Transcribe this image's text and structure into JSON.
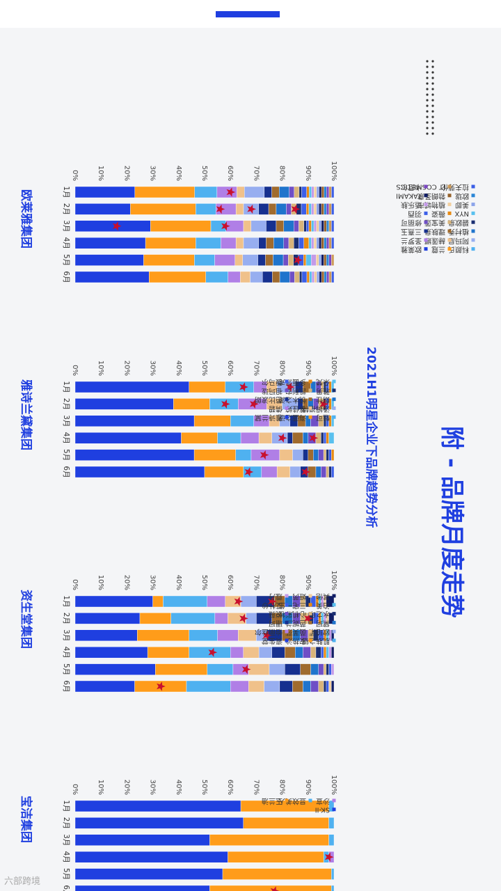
{
  "page": {
    "title": "附 - 品牌月度走势",
    "subtitle": "2021H1明星企业下品牌趋势分析",
    "watermark": "化妆品财经在线",
    "footer": "六部跨境",
    "colors": {
      "accent": "#1f3fe0",
      "star": "#c8102e"
    }
  },
  "chart_data": [
    {
      "type": "bar",
      "stacked": "percent",
      "title": "欧莱雅集团",
      "categories": [
        "1月",
        "2月",
        "3月",
        "4月",
        "5月",
        "6月"
      ],
      "yticks": [
        "0%",
        "10%",
        "20%",
        "30%",
        "40%",
        "50%",
        "60%",
        "70%",
        "80%",
        "90%",
        "100%"
      ],
      "series": [
        {
          "name": "欧莱雅",
          "color": "#1f3fe0",
          "values": [
            24,
            22,
            30,
            28,
            27,
            30
          ]
        },
        {
          "name": "兰蔻",
          "color": "#ff9c1a",
          "values": [
            24,
            26,
            24,
            20,
            20,
            23
          ]
        },
        {
          "name": "科颜氏",
          "color": "#4fb1f0",
          "values": [
            9,
            8,
            6,
            10,
            8,
            9
          ]
        },
        {
          "name": "圣罗兰",
          "color": "#b07fe6",
          "values": [
            8,
            8,
            7,
            6,
            8,
            5
          ]
        },
        {
          "name": "赫莲娜",
          "color": "#f0c18a",
          "values": [
            3,
            3,
            3,
            3,
            3,
            4
          ]
        },
        {
          "name": "阿玛尼",
          "color": "#97aef0",
          "values": [
            8,
            6,
            6,
            6,
            6,
            5
          ]
        },
        {
          "name": "三熹玉",
          "color": "#16308f",
          "values": [
            3,
            4,
            4,
            3,
            3,
            4
          ]
        },
        {
          "name": "理肤泉",
          "color": "#a06b2e",
          "values": [
            3,
            3,
            3,
            3,
            3,
            3
          ]
        },
        {
          "name": "植村秀",
          "color": "#1f74cc",
          "values": [
            4,
            4,
            4,
            4,
            4,
            4
          ]
        },
        {
          "name": "修丽可",
          "color": "#6f4fc6",
          "values": [
            2,
            2,
            2,
            2,
            2,
            2
          ]
        },
        {
          "name": "美宝莲",
          "color": "#d8b47a",
          "values": [
            2,
            2,
            2,
            2,
            2,
            2
          ]
        },
        {
          "name": "碧欧泉",
          "color": "#1a2e72",
          "values": [
            1,
            2,
            1,
            2,
            2,
            1
          ]
        },
        {
          "name": "羽西",
          "color": "#3c5fe8",
          "values": [
            2,
            2,
            1,
            2,
            2,
            2
          ]
        },
        {
          "name": "薇姿",
          "color": "#e88a12",
          "values": [
            1,
            1,
            1,
            2,
            1,
            1
          ]
        },
        {
          "name": "NYX",
          "color": "#59c0ee",
          "values": [
            1,
            1,
            1,
            1,
            2,
            1
          ]
        },
        {
          "name": "适乐肤",
          "color": "#c49ae8",
          "values": [
            1,
            1,
            1,
            1,
            2,
            1
          ]
        },
        {
          "name": "植物城市",
          "color": "#f2cf9f",
          "values": [
            1,
            1,
            1,
            1,
            1,
            1
          ]
        },
        {
          "name": "美即",
          "color": "#8ca4ea",
          "values": [
            1,
            1,
            1,
            1,
            1,
            1
          ]
        },
        {
          "name": "TAKAMI",
          "color": "#101d66",
          "values": [
            1,
            1,
            1,
            1,
            1,
            1
          ]
        },
        {
          "name": "勃朗圣泉",
          "color": "#95612a",
          "values": [
            1,
            1,
            1,
            1,
            1,
            1
          ]
        },
        {
          "name": "欧珑",
          "color": "#2a86d6",
          "values": [
            1,
            1,
            1,
            1,
            1,
            1
          ]
        },
        {
          "name": "卡尼尔",
          "color": "#7a46c2",
          "values": [
            1,
            1,
            0,
            1,
            1,
            1
          ]
        },
        {
          "name": "IT COSMETICS",
          "color": "#cc9a5a",
          "values": [
            1,
            1,
            1,
            1,
            1,
            1
          ]
        },
        {
          "name": "拉夫劳伦",
          "color": "#3b5ee6",
          "values": [
            1,
            1,
            1,
            1,
            0,
            1
          ]
        }
      ],
      "annotations": [
        {
          "category": "1月",
          "at": 60
        },
        {
          "category": "2月",
          "at": 56
        },
        {
          "category": "2月",
          "at": 68
        },
        {
          "category": "2月",
          "at": 85
        },
        {
          "category": "3月",
          "at": 16
        },
        {
          "category": "3月",
          "at": 58
        },
        {
          "category": "5月",
          "at": 86
        }
      ]
    },
    {
      "type": "bar",
      "stacked": "percent",
      "title": "雅诗兰黛集团",
      "categories": [
        "1月",
        "2月",
        "3月",
        "4月",
        "5月",
        "6月"
      ],
      "yticks": [
        "0%",
        "10%",
        "20%",
        "30%",
        "40%",
        "50%",
        "60%",
        "70%",
        "80%",
        "90%",
        "100%"
      ],
      "series": [
        {
          "name": "雅诗兰黛",
          "color": "#1f3fe0",
          "values": [
            44,
            38,
            46,
            41,
            46,
            50
          ]
        },
        {
          "name": "海蓝之谜",
          "color": "#ff9c1a",
          "values": [
            14,
            14,
            14,
            14,
            16,
            15
          ]
        },
        {
          "name": "魅可",
          "color": "#4fb1f0",
          "values": [
            11,
            11,
            9,
            9,
            6,
            7
          ]
        },
        {
          "name": "倩碧",
          "color": "#b07fe6",
          "values": [
            5,
            11,
            6,
            7,
            11,
            6
          ]
        },
        {
          "name": "蒂佳婷",
          "color": "#f0c18a",
          "values": [
            4,
            6,
            4,
            5,
            5,
            5
          ]
        },
        {
          "name": "汤姆福特",
          "color": "#97aef0",
          "values": [
            7,
            6,
            4,
            6,
            4,
            4
          ]
        },
        {
          "name": "芭比波朗",
          "color": "#16308f",
          "values": [
            3,
            2,
            3,
            2,
            2,
            3
          ]
        },
        {
          "name": "悦木之源",
          "color": "#a06b2e",
          "values": [
            3,
            2,
            3,
            4,
            2,
            3
          ]
        },
        {
          "name": "朗仕",
          "color": "#1f74cc",
          "values": [
            2,
            2,
            2,
            2,
            2,
            2
          ]
        },
        {
          "name": "祖玛珑",
          "color": "#6f4fc6",
          "values": [
            2,
            2,
            3,
            3,
            2,
            2
          ]
        },
        {
          "name": "凯利安",
          "color": "#d8b47a",
          "values": [
            1,
            2,
            2,
            2,
            1,
            1
          ]
        },
        {
          "name": "雅男",
          "color": "#1a2e72",
          "values": [
            1,
            1,
            1,
            1,
            1,
            1
          ]
        },
        {
          "name": "馥马尔",
          "color": "#3c5fe8",
          "values": [
            1,
            1,
            1,
            1,
            1,
            1
          ]
        },
        {
          "name": "多面派对",
          "color": "#e88a12",
          "values": [
            1,
            1,
            1,
            1,
            1,
            0
          ]
        },
        {
          "name": "朵梵",
          "color": "#59c0ee",
          "values": [
            1,
            1,
            1,
            2,
            0,
            0
          ]
        }
      ],
      "annotations": [
        {
          "category": "1月",
          "at": 65
        },
        {
          "category": "1月",
          "at": 83
        },
        {
          "category": "2月",
          "at": 58
        },
        {
          "category": "2月",
          "at": 69
        },
        {
          "category": "2月",
          "at": 96
        },
        {
          "category": "4月",
          "at": 80
        },
        {
          "category": "4月",
          "at": 92
        },
        {
          "category": "5月",
          "at": 73
        },
        {
          "category": "6月",
          "at": 67
        },
        {
          "category": "6月",
          "at": 89
        }
      ]
    },
    {
      "type": "bar",
      "stacked": "percent",
      "title": "资生堂集团",
      "categories": [
        "1月",
        "2月",
        "3月",
        "4月",
        "5月",
        "6月"
      ],
      "yticks": [
        "0%",
        "10%",
        "20%",
        "30%",
        "40%",
        "50%",
        "60%",
        "70%",
        "80%",
        "90%",
        "100%"
      ],
      "series": [
        {
          "name": "资生堂",
          "color": "#1f3fe0",
          "values": [
            30,
            25,
            24,
            28,
            31,
            23
          ]
        },
        {
          "name": "安热沙",
          "color": "#ff9c1a",
          "values": [
            4,
            12,
            20,
            16,
            20,
            20
          ]
        },
        {
          "name": "肌肤之钥",
          "color": "#4fb1f0",
          "values": [
            17,
            17,
            11,
            16,
            10,
            17
          ]
        },
        {
          "name": "怡丽丝尔",
          "color": "#b07fe6",
          "values": [
            7,
            5,
            8,
            5,
            6,
            7
          ]
        },
        {
          "name": "茵芙莎",
          "color": "#f0c18a",
          "values": [
            6,
            7,
            7,
            6,
            8,
            6
          ]
        },
        {
          "name": "欧珀莱",
          "color": "#97aef0",
          "values": [
            6,
            4,
            4,
            5,
            6,
            6
          ]
        },
        {
          "name": "珊珂",
          "color": "#16308f",
          "values": [
            7,
            6,
            6,
            5,
            6,
            5
          ]
        },
        {
          "name": "芭妮兰",
          "color": "#a06b2e",
          "values": [
            4,
            4,
            4,
            4,
            4,
            4
          ]
        },
        {
          "name": "黛珂",
          "color": "#1f74cc",
          "values": [
            3,
            4,
            3,
            3,
            3,
            3
          ]
        },
        {
          "name": "悦薇",
          "color": "#6f4fc6",
          "values": [
            3,
            3,
            3,
            3,
            2,
            3
          ]
        },
        {
          "name": "心机彩妆",
          "color": "#d8b47a",
          "values": [
            2,
            3,
            2,
            2,
            1,
            2
          ]
        },
        {
          "name": "水之印",
          "color": "#1a2e72",
          "values": [
            2,
            2,
            2,
            2,
            1,
            1
          ]
        },
        {
          "name": "艾杜纱",
          "color": "#3c5fe8",
          "values": [
            2,
            2,
            2,
            1,
            1,
            1
          ]
        },
        {
          "name": "三宅一生",
          "color": "#e88a12",
          "values": [
            1,
            1,
            1,
            1,
            0,
            0
          ]
        },
        {
          "name": "泊美",
          "color": "#59c0ee",
          "values": [
            1,
            1,
            1,
            1,
            0,
            0
          ]
        },
        {
          "name": "蔻丹",
          "color": "#c49ae8",
          "values": [
            1,
            1,
            1,
            1,
            1,
            0
          ]
        },
        {
          "name": "姬芮",
          "color": "#f2cf9f",
          "values": [
            1,
            1,
            0,
            0,
            0,
            1
          ]
        },
        {
          "name": "其他",
          "color": "#101d66",
          "values": [
            3,
            2,
            1,
            1,
            0,
            1
          ]
        }
      ],
      "annotations": [
        {
          "category": "1月",
          "at": 63
        },
        {
          "category": "1月",
          "at": 76
        },
        {
          "category": "2月",
          "at": 65
        },
        {
          "category": "2月",
          "at": 90
        },
        {
          "category": "3月",
          "at": 74
        },
        {
          "category": "4月",
          "at": 53
        },
        {
          "category": "5月",
          "at": 66
        },
        {
          "category": "6月",
          "at": 33
        }
      ]
    },
    {
      "type": "bar",
      "stacked": "percent",
      "title": "宝洁集团",
      "categories": [
        "1月",
        "2月",
        "3月",
        "4月",
        "5月",
        "6月"
      ],
      "yticks": [
        "0%",
        "10%",
        "20%",
        "30%",
        "40%",
        "50%",
        "60%",
        "70%",
        "80%",
        "90%",
        "100%"
      ],
      "series": [
        {
          "name": "SK-II",
          "color": "#1f3fe0",
          "values": [
            64,
            65,
            52,
            59,
            57,
            52
          ]
        },
        {
          "name": "玉兰油",
          "color": "#ff9c1a",
          "values": [
            34,
            33,
            46,
            37,
            42,
            47
          ]
        },
        {
          "name": "显效美人",
          "color": "#4fb1f0",
          "values": [
            2,
            2,
            2,
            2,
            1,
            1
          ]
        },
        {
          "name": "沙宣",
          "color": "#b07fe6",
          "values": [
            0,
            0,
            0,
            2,
            0,
            0
          ]
        }
      ],
      "annotations": [
        {
          "category": "4月",
          "at": 98
        },
        {
          "category": "6月",
          "at": 77
        }
      ]
    }
  ]
}
